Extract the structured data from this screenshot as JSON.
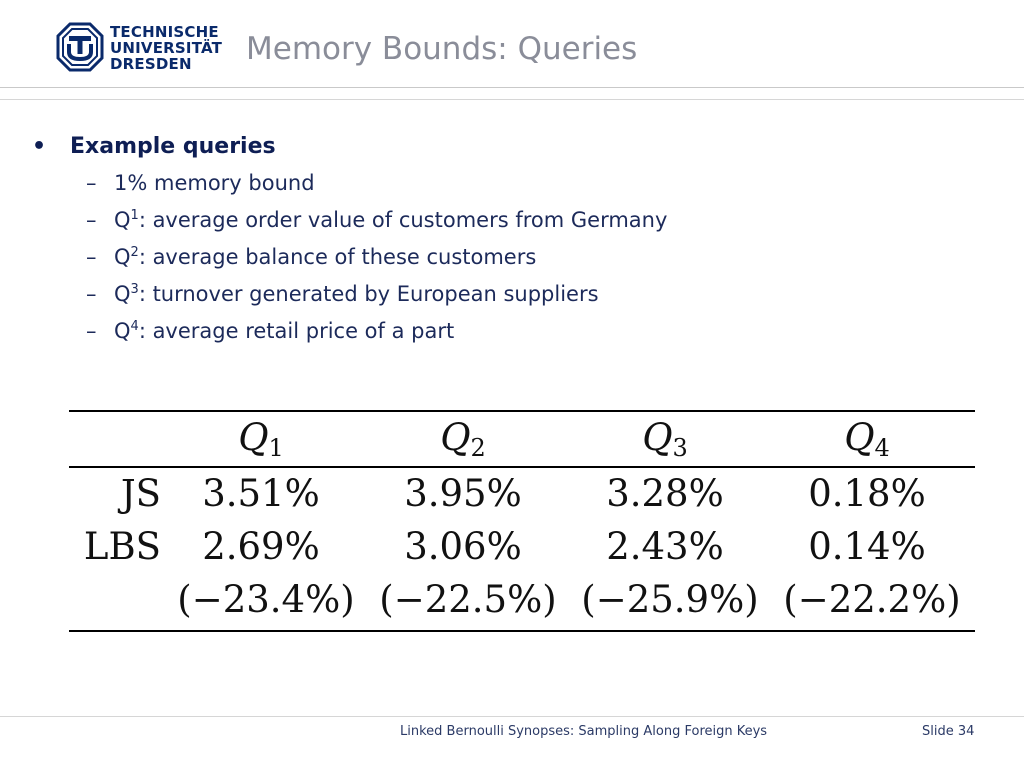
{
  "header": {
    "logo_lines": [
      "TECHNISCHE",
      "UNIVERSITÄT",
      "DRESDEN"
    ],
    "title": "Memory Bounds: Queries"
  },
  "bullets": {
    "heading": "Example queries",
    "items": [
      {
        "prefix": "",
        "sub": "",
        "text": "1% memory bound"
      },
      {
        "prefix": "Q",
        "sub": "1",
        "text": ": average order value of customers from Germany"
      },
      {
        "prefix": "Q",
        "sub": "2",
        "text": ": average balance of these customers"
      },
      {
        "prefix": "Q",
        "sub": "3",
        "text": ": turnover generated by European suppliers"
      },
      {
        "prefix": "Q",
        "sub": "4",
        "text": ": average retail price of a part"
      }
    ]
  },
  "table": {
    "columns": [
      {
        "q": "Q",
        "sub": "1"
      },
      {
        "q": "Q",
        "sub": "2"
      },
      {
        "q": "Q",
        "sub": "3"
      },
      {
        "q": "Q",
        "sub": "4"
      }
    ],
    "rows": [
      {
        "label": "JS",
        "values": [
          "3.51%",
          "3.95%",
          "3.28%",
          "0.18%"
        ]
      },
      {
        "label": "LBS",
        "values": [
          "2.69%",
          "3.06%",
          "2.43%",
          "0.14%"
        ]
      },
      {
        "label": "",
        "values": [
          "(−23.4%)",
          "(−22.5%)",
          "(−25.9%)",
          "(−22.2%)"
        ]
      }
    ]
  },
  "footer": {
    "text": "Linked Bernoulli Synopses: Sampling Along Foreign Keys",
    "slide": "Slide 34"
  }
}
